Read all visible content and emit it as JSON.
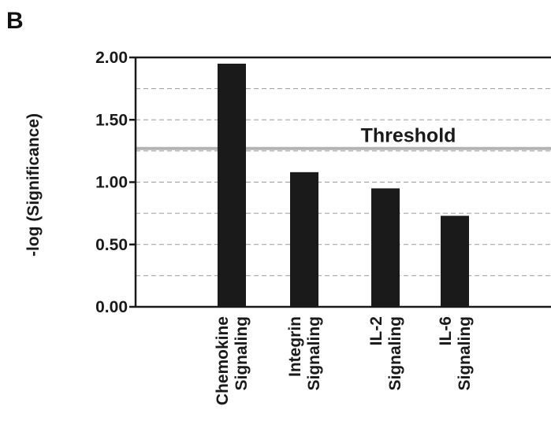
{
  "panel_label": "B",
  "chart_data": {
    "type": "bar",
    "categories": [
      [
        "Chemokine",
        "Signaling"
      ],
      [
        "Integrin",
        "Signaling"
      ],
      [
        "IL-2",
        "Signaling"
      ],
      [
        "IL-6",
        "Signaling"
      ]
    ],
    "values": [
      1.95,
      1.08,
      0.95,
      0.73
    ],
    "title": "",
    "xlabel": "",
    "ylabel": "-log (Significance)",
    "ylim": [
      0,
      2.0
    ],
    "yticks": [
      "0.00",
      "0.50",
      "1.00",
      "1.50",
      "2.00"
    ],
    "grid": true,
    "threshold": {
      "value": 1.27,
      "label": "Threshold"
    },
    "colors": {
      "bar": "#1a1a1a",
      "grid": "#9a9a9a",
      "threshold": "#b3b3b3",
      "axis": "#1a1a1a"
    }
  }
}
